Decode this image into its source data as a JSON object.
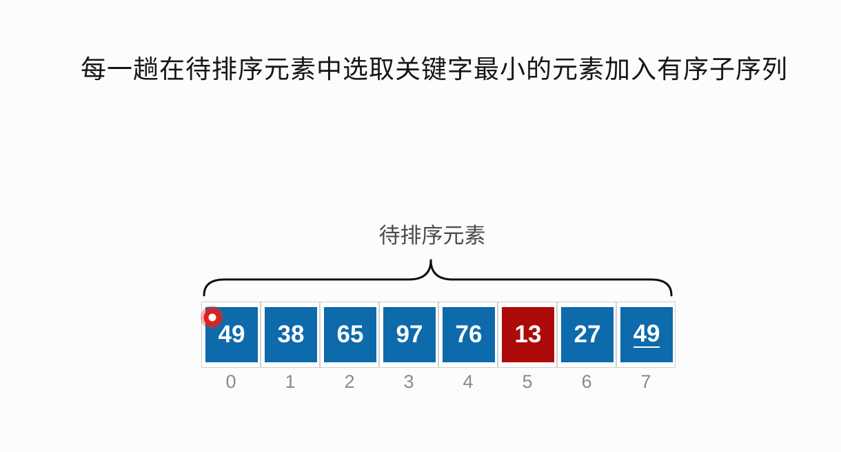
{
  "title": "每一趟在待排序元素中选取关键字最小的元素加入有序子序列",
  "brace_label": "待排序元素",
  "colors": {
    "element": "#0d6aab",
    "minimum": "#ad0a0a",
    "text": "#ffffff",
    "index": "#8a8a8a",
    "pointer": "#e0201e"
  },
  "array": [
    {
      "value": "49",
      "index": "0"
    },
    {
      "value": "38",
      "index": "1"
    },
    {
      "value": "65",
      "index": "2"
    },
    {
      "value": "97",
      "index": "3"
    },
    {
      "value": "76",
      "index": "4"
    },
    {
      "value": "13",
      "index": "5",
      "highlight": "minimum"
    },
    {
      "value": "27",
      "index": "6"
    },
    {
      "value": "49",
      "index": "7",
      "underlined": true
    }
  ]
}
